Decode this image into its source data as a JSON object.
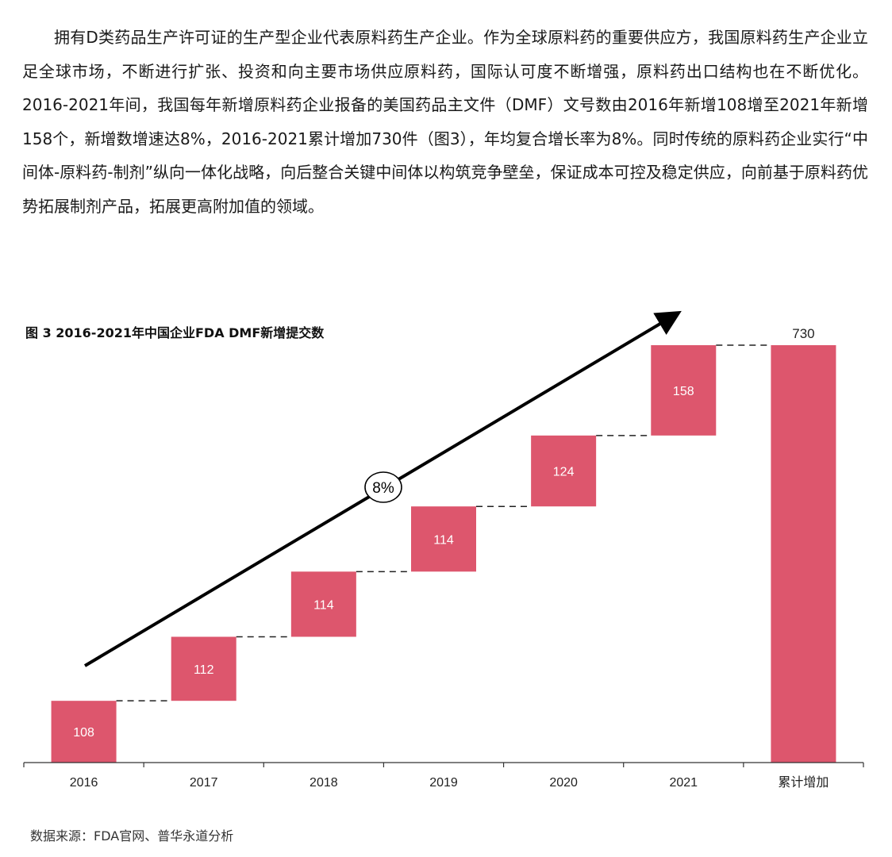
{
  "document": {
    "paragraph": "拥有D类药品生产许可证的生产型企业代表原料药生产企业。作为全球原料药的重要供应方，我国原料药生产企业立足全球市场，不断进行扩张、投资和向主要市场供应原料药，国际认可度不断增强，原料药出口结构也在不断优化。2016-2021年间，我国每年新增原料药企业报备的美国药品主文件（DMF）文号数由2016年新增108增至2021年新增158个，新增数增速达8%，2016-2021累计增加730件（图3），年均复合增长率为8%。同时传统的原料药企业实行“中间体-原料药-制剂”纵向一体化战略，向后整合关键中间体以构筑竞争壁垒，保证成本可控及稳定供应，向前基于原料药优势拓展制剂产品，拓展更高附加值的领域。",
    "source": "数据来源：FDA官网、普华永道分析"
  },
  "chart_data": {
    "type": "bar",
    "subtype": "waterfall",
    "title": "图 3 2016-2021年中国企业FDA DMF新增提交数",
    "categories": [
      "2016",
      "2017",
      "2018",
      "2019",
      "2020",
      "2021",
      "累计增加"
    ],
    "values": [
      108,
      112,
      114,
      114,
      124,
      158,
      730
    ],
    "total_label": "730",
    "annotation": "8%",
    "bar_color": "#dd566d",
    "ylim": [
      0,
      730
    ],
    "grid": false,
    "legend": "none"
  }
}
